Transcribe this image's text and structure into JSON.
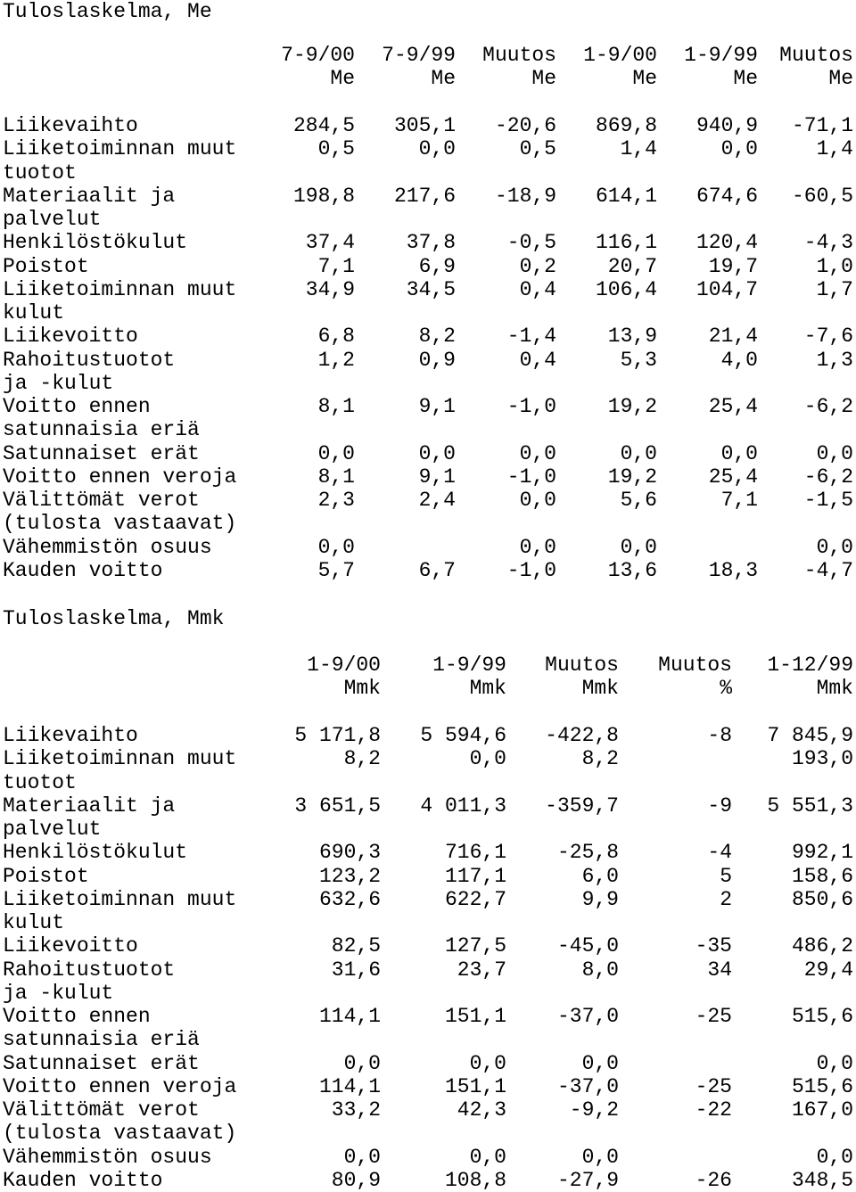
{
  "section1": {
    "title": "Tuloslaskelma, Me",
    "headers": [
      "7-9/00",
      "7-9/99",
      "Muutos",
      "1-9/00",
      "1-9/99",
      "Muutos"
    ],
    "units": [
      "Me",
      "Me",
      "Me",
      "Me",
      "Me",
      "Me"
    ],
    "rows": [
      {
        "label": [
          "Liikevaihto"
        ],
        "values": [
          "284,5",
          "305,1",
          "-20,6",
          "869,8",
          "940,9",
          "-71,1"
        ]
      },
      {
        "label": [
          "Liiketoiminnan muut",
          "tuotot"
        ],
        "values": [
          "0,5",
          "0,0",
          "0,5",
          "1,4",
          "0,0",
          "1,4"
        ]
      },
      {
        "label": [
          "Materiaalit ja",
          "palvelut"
        ],
        "values": [
          "198,8",
          "217,6",
          "-18,9",
          "614,1",
          "674,6",
          "-60,5"
        ]
      },
      {
        "label": [
          "Henkilöstökulut"
        ],
        "values": [
          "37,4",
          "37,8",
          "-0,5",
          "116,1",
          "120,4",
          "-4,3"
        ]
      },
      {
        "label": [
          "Poistot"
        ],
        "values": [
          "7,1",
          "6,9",
          "0,2",
          "20,7",
          "19,7",
          "1,0"
        ]
      },
      {
        "label": [
          "Liiketoiminnan muut",
          "kulut"
        ],
        "values": [
          "34,9",
          "34,5",
          "0,4",
          "106,4",
          "104,7",
          "1,7"
        ]
      },
      {
        "label": [
          "Liikevoitto"
        ],
        "values": [
          "6,8",
          "8,2",
          "-1,4",
          "13,9",
          "21,4",
          "-7,6"
        ]
      },
      {
        "label": [
          "Rahoitustuotot",
          "ja -kulut"
        ],
        "values": [
          "1,2",
          "0,9",
          "0,4",
          "5,3",
          "4,0",
          "1,3"
        ]
      },
      {
        "label": [
          "Voitto ennen",
          "satunnaisia eriä"
        ],
        "values": [
          "8,1",
          "9,1",
          "-1,0",
          "19,2",
          "25,4",
          "-6,2"
        ]
      },
      {
        "label": [
          "Satunnaiset erät"
        ],
        "values": [
          "0,0",
          "0,0",
          "0,0",
          "0,0",
          "0,0",
          "0,0"
        ]
      },
      {
        "label": [
          "Voitto ennen veroja"
        ],
        "values": [
          "8,1",
          "9,1",
          "-1,0",
          "19,2",
          "25,4",
          "-6,2"
        ]
      },
      {
        "label": [
          "Välittömät verot",
          "(tulosta vastaavat)"
        ],
        "values": [
          "2,3",
          "2,4",
          "0,0",
          "5,6",
          "7,1",
          "-1,5"
        ]
      },
      {
        "label": [
          "Vähemmistön osuus"
        ],
        "values": [
          "0,0",
          "",
          "0,0",
          "0,0",
          "",
          "0,0"
        ]
      },
      {
        "label": [
          "Kauden voitto"
        ],
        "values": [
          "5,7",
          "6,7",
          "-1,0",
          "13,6",
          "18,3",
          "-4,7"
        ]
      }
    ]
  },
  "section2": {
    "title": "Tuloslaskelma, Mmk",
    "headers": [
      "1-9/00",
      "1-9/99",
      "Muutos",
      "Muutos",
      "1-12/99"
    ],
    "units": [
      "Mmk",
      "Mmk",
      "Mmk",
      "%",
      "Mmk"
    ],
    "rows": [
      {
        "label": [
          "Liikevaihto"
        ],
        "values": [
          "5 171,8",
          "5 594,6",
          "-422,8",
          "-8",
          "7 845,9"
        ]
      },
      {
        "label": [
          "Liiketoiminnan muut",
          "tuotot"
        ],
        "values": [
          "8,2",
          "0,0",
          "8,2",
          "",
          "193,0"
        ]
      },
      {
        "label": [
          "Materiaalit ja",
          "palvelut"
        ],
        "values": [
          "3 651,5",
          "4 011,3",
          "-359,7",
          "-9",
          "5 551,3"
        ]
      },
      {
        "label": [
          "Henkilöstökulut"
        ],
        "values": [
          "690,3",
          "716,1",
          "-25,8",
          "-4",
          "992,1"
        ]
      },
      {
        "label": [
          "Poistot"
        ],
        "values": [
          "123,2",
          "117,1",
          "6,0",
          "5",
          "158,6"
        ]
      },
      {
        "label": [
          "Liiketoiminnan muut",
          "kulut"
        ],
        "values": [
          "632,6",
          "622,7",
          "9,9",
          "2",
          "850,6"
        ]
      },
      {
        "label": [
          "Liikevoitto"
        ],
        "values": [
          "82,5",
          "127,5",
          "-45,0",
          "-35",
          "486,2"
        ]
      },
      {
        "label": [
          "Rahoitustuotot",
          "ja -kulut"
        ],
        "values": [
          "31,6",
          "23,7",
          "8,0",
          "34",
          "29,4"
        ]
      },
      {
        "label": [
          "Voitto ennen",
          "satunnaisia eriä"
        ],
        "values": [
          "114,1",
          "151,1",
          "-37,0",
          "-25",
          "515,6"
        ]
      },
      {
        "label": [
          "Satunnaiset erät"
        ],
        "values": [
          "0,0",
          "0,0",
          "0,0",
          "",
          "0,0"
        ]
      },
      {
        "label": [
          "Voitto ennen veroja"
        ],
        "values": [
          "114,1",
          "151,1",
          "-37,0",
          "-25",
          "515,6"
        ]
      },
      {
        "label": [
          "Välittömät verot",
          "(tulosta vastaavat)"
        ],
        "values": [
          "33,2",
          "42,3",
          "-9,2",
          "-22",
          "167,0"
        ]
      },
      {
        "label": [
          "Vähemmistön osuus"
        ],
        "values": [
          "0,0",
          "0,0",
          "0,0",
          "",
          "0,0"
        ]
      },
      {
        "label": [
          "Kauden voitto"
        ],
        "values": [
          "80,9",
          "108,8",
          "-27,9",
          "-26",
          "348,5"
        ]
      }
    ]
  }
}
